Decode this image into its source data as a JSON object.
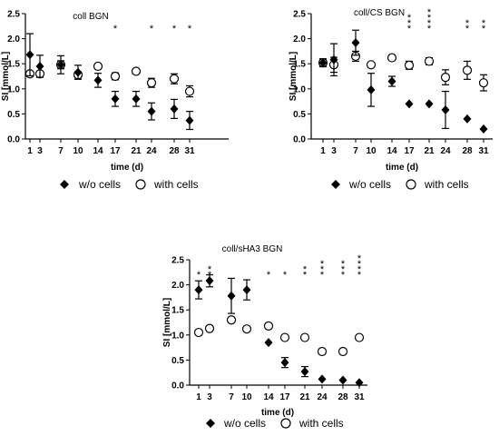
{
  "chart_data": [
    {
      "type": "scatter",
      "title": "coll BGN",
      "xlabel": "time (d)",
      "ylabel": "SI [mmol/L]",
      "x_ticks": [
        1,
        3,
        7,
        10,
        14,
        17,
        21,
        24,
        28,
        31
      ],
      "y_ticks": [
        "0.0",
        "0.5",
        "1.0",
        "1.5",
        "2.0",
        "2.5"
      ],
      "ylim": [
        0,
        2.5
      ],
      "legend_position": "bottom",
      "series": [
        {
          "name": "w/o cells",
          "marker": "diamond",
          "x": [
            1,
            3,
            7,
            10,
            14,
            17,
            21,
            24,
            28,
            31
          ],
          "y": [
            1.68,
            1.45,
            1.48,
            1.33,
            1.17,
            0.8,
            0.8,
            0.55,
            0.6,
            0.37
          ],
          "err": [
            0.42,
            0.22,
            0.18,
            0.14,
            0.14,
            0.15,
            0.15,
            0.17,
            0.19,
            0.18
          ]
        },
        {
          "name": "with cells",
          "marker": "circle",
          "x": [
            1,
            3,
            7,
            10,
            14,
            17,
            21,
            24,
            28,
            31
          ],
          "y": [
            1.3,
            1.3,
            1.48,
            1.28,
            1.45,
            1.25,
            1.35,
            1.12,
            1.2,
            0.95
          ],
          "err": [
            0,
            0,
            0.08,
            0.06,
            0,
            0.07,
            0,
            0.09,
            0.1,
            0.11
          ]
        }
      ],
      "significance": [
        {
          "x": 17,
          "label": "*"
        },
        {
          "x": 24,
          "label": "*"
        },
        {
          "x": 28,
          "label": "*"
        },
        {
          "x": 31,
          "label": "*"
        }
      ]
    },
    {
      "type": "scatter",
      "title": "coll/CS BGN",
      "xlabel": "time (d)",
      "ylabel": "SI [mmol/L]",
      "x_ticks": [
        1,
        3,
        7,
        10,
        14,
        17,
        21,
        24,
        28,
        31
      ],
      "y_ticks": [
        "0.0",
        "0.5",
        "1.0",
        "1.5",
        "2.0",
        "2.5"
      ],
      "ylim": [
        0,
        2.5
      ],
      "legend_position": "bottom",
      "series": [
        {
          "name": "w/o cells",
          "marker": "diamond",
          "x": [
            1,
            3,
            7,
            10,
            14,
            17,
            21,
            24,
            28,
            31
          ],
          "y": [
            1.52,
            1.58,
            1.92,
            0.98,
            1.15,
            0.7,
            0.7,
            0.58,
            0.4,
            0.2
          ],
          "err": [
            0.08,
            0.32,
            0.25,
            0.33,
            0.1,
            0,
            0,
            0.37,
            0,
            0
          ]
        },
        {
          "name": "with cells",
          "marker": "circle",
          "x": [
            1,
            3,
            7,
            10,
            14,
            17,
            21,
            24,
            28,
            31
          ],
          "y": [
            1.52,
            1.48,
            1.65,
            1.48,
            1.62,
            1.47,
            1.55,
            1.23,
            1.37,
            1.12
          ],
          "err": [
            0.06,
            0.15,
            0.1,
            0,
            0,
            0.08,
            0.07,
            0.15,
            0.18,
            0.16
          ]
        }
      ],
      "significance": [
        {
          "x": 17,
          "label": "***"
        },
        {
          "x": 21,
          "label": "****"
        },
        {
          "x": 28,
          "label": "**"
        },
        {
          "x": 31,
          "label": "**"
        }
      ]
    },
    {
      "type": "scatter",
      "title": "coll/sHA3 BGN",
      "xlabel": "time (d)",
      "ylabel": "SI [mmol/L]",
      "x_ticks": [
        1,
        3,
        7,
        10,
        14,
        17,
        21,
        24,
        28,
        31
      ],
      "y_ticks": [
        "0.0",
        "0.5",
        "1.0",
        "1.5",
        "2.0",
        "2.5"
      ],
      "ylim": [
        0,
        2.5
      ],
      "legend_position": "bottom",
      "series": [
        {
          "name": "w/o cells",
          "marker": "diamond",
          "x": [
            1,
            3,
            7,
            10,
            14,
            17,
            21,
            24,
            28,
            31
          ],
          "y": [
            1.9,
            2.08,
            1.78,
            1.9,
            0.85,
            0.45,
            0.27,
            0.12,
            0.1,
            0.05
          ],
          "err": [
            0.18,
            0.12,
            0.35,
            0.2,
            0,
            0.1,
            0.1,
            0,
            0,
            0
          ]
        },
        {
          "name": "with cells",
          "marker": "circle",
          "x": [
            1,
            3,
            7,
            10,
            14,
            17,
            21,
            24,
            28,
            31
          ],
          "y": [
            1.05,
            1.13,
            1.3,
            1.12,
            1.18,
            0.95,
            0.95,
            0.67,
            0.67,
            0.95
          ],
          "err": [
            0,
            0,
            0,
            0,
            0,
            0,
            0,
            0,
            0,
            0
          ]
        }
      ],
      "significance": [
        {
          "x": 1,
          "label": "*"
        },
        {
          "x": 3,
          "label": "**"
        },
        {
          "x": 14,
          "label": "*"
        },
        {
          "x": 17,
          "label": "*"
        },
        {
          "x": 21,
          "label": "**"
        },
        {
          "x": 24,
          "label": "***"
        },
        {
          "x": 28,
          "label": "***"
        },
        {
          "x": 31,
          "label": "****"
        }
      ]
    }
  ]
}
